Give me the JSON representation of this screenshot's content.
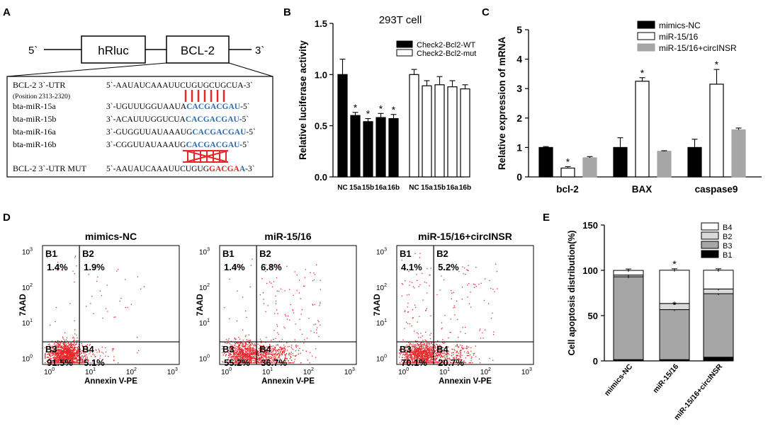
{
  "panel_letters": {
    "A": "A",
    "B": "B",
    "C": "C",
    "D": "D",
    "E": "E"
  },
  "panel_a": {
    "five_prime": "5`",
    "three_prime": "3`",
    "box1": "hRluc",
    "box2": "BCL-2",
    "rows": [
      {
        "label": "BCL-2 3`-UTR",
        "seq_black": "5`-AAUAUCAAAUUCUGUGCUGCUA-3`",
        "seq_blue": "",
        "seq_tail": ""
      },
      {
        "label": "bta-miR-15a",
        "seq_black": "3`-UGUUUGGUAAUA",
        "seq_blue": "CACGACGAU",
        "seq_tail": "-5`"
      },
      {
        "label": "bta-miR-15b",
        "seq_black": "3`-ACAUUUGGUCUA",
        "seq_blue": "CACGACGAU",
        "seq_tail": "-5`"
      },
      {
        "label": "bta-miR-16a",
        "seq_black": "3`-GUGGUUAUAAAUG",
        "seq_blue": "CACGACGAU",
        "seq_tail": "-5`"
      },
      {
        "label": "bta-miR-16b",
        "seq_black": "3`-CGGUUAUAAAUG",
        "seq_blue": "CACGACGAU",
        "seq_tail": "-5`"
      }
    ],
    "position_note": "(Position 2313-2320)",
    "mut_label": "BCL-2 3`-UTR MUT",
    "mut_black": "5`-AAUAUCAAAUUCUGUG",
    "mut_red": "GACGA",
    "mut_blue": "A",
    "mut_tail": "-3`",
    "colors": {
      "blue": "#2e6db5",
      "red": "#e8262a"
    }
  },
  "chart_data": [
    {
      "panel": "B",
      "type": "bar",
      "title": "293T cell",
      "ylabel": "Relative luciferase activity",
      "ylim": [
        0,
        1.5
      ],
      "yticks": [
        "0.0",
        "0.5",
        "1.0",
        "1.5"
      ],
      "categories": [
        "NC",
        "15a",
        "15b",
        "16a",
        "16b"
      ],
      "series": [
        {
          "name": "Check2-Bcl2-WT",
          "values": [
            1.0,
            0.6,
            0.54,
            0.58,
            0.57
          ],
          "errors": [
            0.15,
            0.03,
            0.03,
            0.04,
            0.04
          ],
          "sig": [
            "",
            "*",
            "*",
            "*",
            "*"
          ]
        },
        {
          "name": "Check2-Bcl2-mut",
          "values": [
            1.0,
            0.89,
            0.9,
            0.88,
            0.86
          ],
          "errors": [
            0.05,
            0.05,
            0.08,
            0.06,
            0.04
          ],
          "sig": [
            "",
            "",
            "",
            "",
            ""
          ]
        }
      ]
    },
    {
      "panel": "C",
      "type": "bar",
      "ylabel": "Relative expression of mRNA",
      "ylim": [
        0,
        5
      ],
      "yticks": [
        "0",
        "1",
        "2",
        "3",
        "4",
        "5"
      ],
      "categories": [
        "bcl-2",
        "BAX",
        "caspase9"
      ],
      "series": [
        {
          "name": "mimics-NC",
          "values": [
            1.0,
            1.0,
            1.0
          ],
          "errors": [
            0.03,
            0.33,
            0.28
          ],
          "sig": [
            "",
            "",
            ""
          ]
        },
        {
          "name": "miR-15/16",
          "values": [
            0.3,
            3.25,
            3.15
          ],
          "errors": [
            0.05,
            0.12,
            0.5
          ],
          "sig": [
            "*",
            "*",
            "*"
          ]
        },
        {
          "name": "miR-15/16+circINSR",
          "values": [
            0.65,
            0.87,
            1.6
          ],
          "errors": [
            0.04,
            0.02,
            0.06
          ],
          "sig": [
            "",
            "",
            ""
          ]
        }
      ]
    },
    {
      "panel": "E",
      "type": "bar",
      "stacked": true,
      "ylabel": "Cell apoptosis distribution(%)",
      "ylim": [
        0,
        150
      ],
      "yticks": [
        "0",
        "50",
        "100",
        "150"
      ],
      "categories": [
        "mimics-NC",
        "miR-15/16",
        "miR-15/16+circINSR"
      ],
      "series": [
        {
          "name": "B1",
          "values": [
            1.4,
            1.4,
            4.1
          ]
        },
        {
          "name": "B3",
          "values": [
            91.5,
            55.2,
            70.1
          ]
        },
        {
          "name": "B2",
          "values": [
            1.9,
            6.8,
            5.2
          ]
        },
        {
          "name": "B4",
          "values": [
            5.1,
            36.7,
            20.7
          ]
        }
      ],
      "sig": [
        "",
        "*",
        ""
      ]
    }
  ],
  "flow": {
    "xlabel": "Annexin V-PE",
    "ylabel": "7AAD",
    "ticks": [
      "10",
      "10",
      "10",
      "10"
    ],
    "tick_exps": [
      "0",
      "1",
      "2",
      "3"
    ],
    "quad_labels": [
      "B1",
      "B2",
      "B3",
      "B4"
    ],
    "plots": [
      {
        "title": "mimics-NC",
        "b1": "1.4%",
        "b2": "1.9%",
        "b3": "91.5%",
        "b4": "5.1%",
        "fractions": [
          0.014,
          0.019,
          0.915,
          0.051
        ]
      },
      {
        "title": "miR-15/16",
        "b1": "1.4%",
        "b2": "6.8%",
        "b3": "55.2%",
        "b4": "36.7%",
        "fractions": [
          0.014,
          0.068,
          0.552,
          0.367
        ]
      },
      {
        "title": "miR-15/16+circINSR",
        "b1": "4.1%",
        "b2": "5.2%",
        "b3": "70.1%",
        "b4": "20.7%",
        "fractions": [
          0.041,
          0.052,
          0.701,
          0.207
        ]
      }
    ],
    "dot_color": "#e8262a"
  }
}
